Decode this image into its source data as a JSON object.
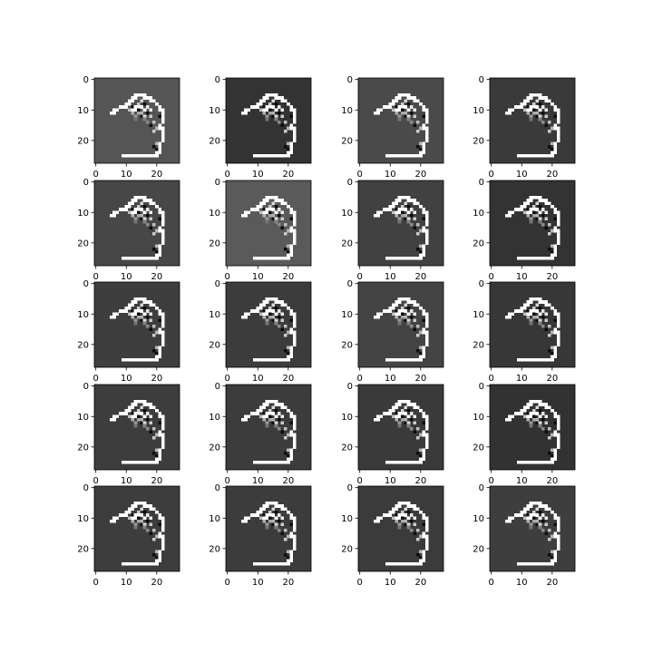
{
  "chart_data": {
    "type": "heatmap",
    "layout": {
      "rows": 5,
      "cols": 4
    },
    "image_size": [
      28,
      28
    ],
    "axis": {
      "x_ticks": [
        0,
        10,
        20
      ],
      "y_ticks": [
        0,
        10,
        20
      ],
      "x_tick_labels": [
        "0",
        "10",
        "20"
      ],
      "y_tick_labels": [
        "0",
        "10",
        "20"
      ],
      "xlim": [
        -0.5,
        27.5
      ],
      "ylim": [
        27.5,
        -0.5
      ]
    },
    "colormap": "gray",
    "panel_backgrounds": [
      "#555555",
      "#333333",
      "#4a4a4a",
      "#3a3a3a",
      "#474747",
      "#5a5a5a",
      "#414141",
      "#333333",
      "#3e3e3e",
      "#3c3c3c",
      "#444444",
      "#373737",
      "#3d3d3d",
      "#3c3c3c",
      "#3a3a3a",
      "#323232",
      "#3d3d3d",
      "#3c3c3c",
      "#3b3b3b",
      "#3e3e3e"
    ],
    "digit_strokes": [
      {
        "name": "hook",
        "points": [
          [
            5,
            11
          ],
          [
            6,
            10
          ],
          [
            8,
            9
          ],
          [
            9,
            9
          ],
          [
            10,
            8
          ],
          [
            11,
            7
          ],
          [
            12,
            6
          ],
          [
            13,
            5
          ],
          [
            15,
            5
          ],
          [
            17,
            6
          ],
          [
            19,
            7
          ],
          [
            20,
            8
          ],
          [
            21,
            9
          ]
        ]
      },
      {
        "name": "inner-loop",
        "points": [
          [
            12,
            10
          ],
          [
            13,
            9
          ],
          [
            15,
            9
          ],
          [
            16,
            10
          ]
        ]
      },
      {
        "name": "right-side",
        "points": [
          [
            21,
            9
          ],
          [
            22,
            11
          ],
          [
            22,
            13
          ],
          [
            21,
            15
          ],
          [
            22,
            17
          ],
          [
            22,
            19
          ],
          [
            21,
            21
          ],
          [
            21,
            23
          ],
          [
            20,
            24
          ],
          [
            19,
            25
          ]
        ]
      },
      {
        "name": "bottom-bar",
        "points": [
          [
            9,
            25
          ],
          [
            10,
            25
          ],
          [
            12,
            25
          ],
          [
            14,
            25
          ],
          [
            16,
            25
          ],
          [
            18,
            25
          ],
          [
            19,
            25
          ]
        ]
      }
    ],
    "gray_speckles": [
      {
        "x": 11,
        "y": 10,
        "v": 0.75
      },
      {
        "x": 14,
        "y": 8,
        "v": 0.8
      },
      {
        "x": 15,
        "y": 11,
        "v": 0.7
      },
      {
        "x": 16,
        "y": 12,
        "v": 0.85
      },
      {
        "x": 13,
        "y": 12,
        "v": 0.6
      },
      {
        "x": 17,
        "y": 9,
        "v": 0.9
      },
      {
        "x": 18,
        "y": 12,
        "v": 0.8
      },
      {
        "x": 19,
        "y": 14,
        "v": 0.75
      },
      {
        "x": 17,
        "y": 14,
        "v": 0.55
      },
      {
        "x": 20,
        "y": 16,
        "v": 0.7
      },
      {
        "x": 19,
        "y": 17,
        "v": 0.8
      },
      {
        "x": 16,
        "y": 13,
        "v": 0.5
      },
      {
        "x": 14,
        "y": 11,
        "v": 0.65
      },
      {
        "x": 12,
        "y": 11,
        "v": 0.7
      },
      {
        "x": 18,
        "y": 10,
        "v": 0.95
      },
      {
        "x": 20,
        "y": 21,
        "v": 0.7
      },
      {
        "x": 13,
        "y": 13,
        "v": 0.45
      },
      {
        "x": 15,
        "y": 7,
        "v": 0.85
      }
    ],
    "dark_pixels": [
      {
        "x": 14,
        "y": 10
      },
      {
        "x": 17,
        "y": 11
      },
      {
        "x": 12,
        "y": 9
      },
      {
        "x": 16,
        "y": 8
      },
      {
        "x": 18,
        "y": 15
      },
      {
        "x": 19,
        "y": 22
      },
      {
        "x": 20,
        "y": 23
      },
      {
        "x": 15,
        "y": 12
      },
      {
        "x": 21,
        "y": 12
      }
    ]
  }
}
